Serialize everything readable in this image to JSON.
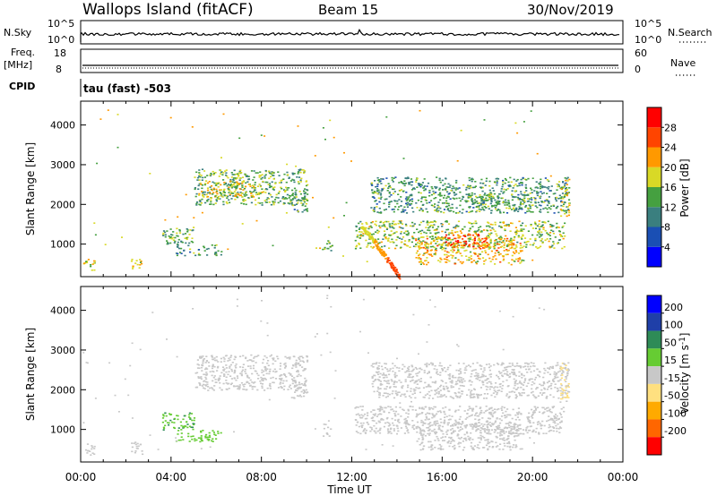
{
  "header": {
    "station": "Wallops Island (fitACF)",
    "beam": "Beam 15",
    "date": "30/Nov/2019"
  },
  "top_panels": {
    "nsky_label": "N.Sky",
    "nsky_tick_top": "10^5",
    "nsky_tick_bottom": "10^0",
    "nsearch_label": "N.Search",
    "nsearch_tick_top": "10^5",
    "nsearch_tick_bottom": "10^0",
    "freq_label": "Freq.",
    "freq_unit": "[MHz]",
    "freq_tick_top": "18",
    "freq_tick_bottom": "8",
    "nave_label": "Nave",
    "nave_tick_top": "60",
    "nave_tick_bottom": "0",
    "cpid_label": "CPID",
    "cpid_text": "tau (fast) -503"
  },
  "x_axis": {
    "label": "Time UT",
    "ticks": [
      "00:00",
      "04:00",
      "08:00",
      "12:00",
      "16:00",
      "20:00",
      "00:00"
    ]
  },
  "colors": {
    "power": [
      "#0000ff",
      "#1a4fb4",
      "#3a7f7f",
      "#45a040",
      "#d9d926",
      "#ff9900",
      "#ff4400",
      "#ff0000"
    ],
    "velocity": [
      "#ff0000",
      "#ff6600",
      "#ffaa00",
      "#ffe080",
      "#c8c8c8",
      "#66cc33",
      "#2e8b57",
      "#1f3fa8",
      "#0000ff"
    ]
  },
  "chart_data": [
    {
      "type": "heatmap",
      "panel": "power",
      "ylabel": "Slant Range [km]",
      "yticks": [
        1000,
        2000,
        3000,
        4000
      ],
      "ylim": [
        180,
        4600
      ],
      "xlim": [
        0,
        24
      ],
      "colorbar_label": "Power [dB]",
      "colorbar_ticks": [
        4,
        8,
        12,
        16,
        20,
        24,
        28
      ],
      "colorbar_range": [
        0,
        32
      ],
      "regions": [
        {
          "t0": 0.1,
          "t1": 0.6,
          "r0": 350,
          "r1": 650,
          "value": 18
        },
        {
          "t0": 2.2,
          "t1": 2.7,
          "r0": 350,
          "r1": 700,
          "value": 20
        },
        {
          "t0": 3.6,
          "t1": 5.0,
          "r0": 1000,
          "r1": 1450,
          "value": 14
        },
        {
          "t0": 4.2,
          "t1": 6.2,
          "r0": 700,
          "r1": 1000,
          "value": 12
        },
        {
          "t0": 5.0,
          "t1": 10.0,
          "r0": 2000,
          "r1": 2900,
          "value": 14
        },
        {
          "t0": 5.2,
          "t1": 8.0,
          "r0": 2200,
          "r1": 2600,
          "value": 18
        },
        {
          "t0": 9.3,
          "t1": 10.0,
          "r0": 1800,
          "r1": 2300,
          "value": 12
        },
        {
          "t0": 10.6,
          "t1": 11.1,
          "r0": 850,
          "r1": 1150,
          "value": 14
        },
        {
          "t0": 12.1,
          "t1": 21.4,
          "r0": 900,
          "r1": 1600,
          "value": 16
        },
        {
          "t0": 14.8,
          "t1": 19.5,
          "r0": 500,
          "r1": 1200,
          "value": 20
        },
        {
          "t0": 16.0,
          "t1": 18.0,
          "r0": 900,
          "r1": 1300,
          "value": 26
        },
        {
          "t0": 12.8,
          "t1": 21.6,
          "r0": 1800,
          "r1": 2700,
          "value": 12
        },
        {
          "t0": 17.0,
          "t1": 20.0,
          "r0": 1900,
          "r1": 2300,
          "value": 14
        },
        {
          "t0": 21.2,
          "t1": 21.6,
          "r0": 1700,
          "r1": 2700,
          "value": 18
        }
      ]
    },
    {
      "type": "heatmap",
      "panel": "velocity",
      "ylabel": "Slant Range [km]",
      "yticks": [
        1000,
        2000,
        3000,
        4000
      ],
      "ylim": [
        180,
        4600
      ],
      "xlim": [
        0,
        24
      ],
      "colorbar_label": "Velocity [m s^-1]",
      "colorbar_ticks": [
        200,
        100,
        50,
        15,
        -15,
        -50,
        -100,
        -200
      ],
      "regions": [
        {
          "t0": 0.1,
          "t1": 0.6,
          "r0": 350,
          "r1": 650,
          "value": 0
        },
        {
          "t0": 2.2,
          "t1": 2.7,
          "r0": 350,
          "r1": 700,
          "value": 0
        },
        {
          "t0": 3.6,
          "t1": 5.0,
          "r0": 1000,
          "r1": 1450,
          "value": 40
        },
        {
          "t0": 4.2,
          "t1": 6.2,
          "r0": 700,
          "r1": 1000,
          "value": 30
        },
        {
          "t0": 5.0,
          "t1": 10.0,
          "r0": 2000,
          "r1": 2900,
          "value": 0
        },
        {
          "t0": 9.3,
          "t1": 10.0,
          "r0": 1800,
          "r1": 2300,
          "value": 0
        },
        {
          "t0": 10.6,
          "t1": 11.1,
          "r0": 850,
          "r1": 1150,
          "value": 0
        },
        {
          "t0": 12.1,
          "t1": 21.4,
          "r0": 900,
          "r1": 1600,
          "value": 0
        },
        {
          "t0": 14.8,
          "t1": 19.5,
          "r0": 500,
          "r1": 1200,
          "value": 0
        },
        {
          "t0": 12.8,
          "t1": 21.6,
          "r0": 1800,
          "r1": 2700,
          "value": 0
        },
        {
          "t0": 21.2,
          "t1": 21.6,
          "r0": 1700,
          "r1": 2700,
          "value": -20
        }
      ]
    }
  ]
}
